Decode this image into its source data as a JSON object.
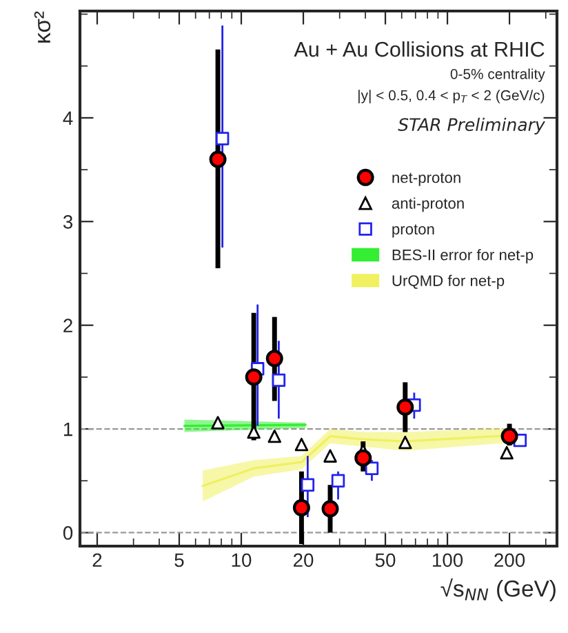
{
  "chart_data": {
    "type": "scatter",
    "xlabel": "√s$_{NN}$ (GeV)",
    "ylabel": "κσ²",
    "annotations": [
      "Au + Au Collisions at RHIC",
      "0-5% centrality",
      "|y| < 0.5, 0.4 < p$_{T}$ < 2 (GeV/c)",
      "STAR Preliminary"
    ],
    "log": "x",
    "xlim": [
      1.65,
      340
    ],
    "xticks": [
      2,
      5,
      10,
      20,
      50,
      100,
      200
    ],
    "ylim": [
      -0.13,
      5.03
    ],
    "yticks": [
      0,
      1,
      2,
      3,
      4
    ],
    "grid": false,
    "legend": "right",
    "ref_lines": [
      {
        "axis": "y",
        "value": 0,
        "color": "#999999",
        "line_style": "dashed"
      },
      {
        "axis": "y",
        "value": 1,
        "color": "#999999",
        "line_style": "dashed"
      }
    ],
    "series": [
      {
        "name": "BES-II error for net-p",
        "type": "line",
        "color": "#33ee33",
        "x": [
          5.3,
          20.5
        ],
        "values": [
          1.03,
          1.04
        ],
        "lower": [
          0.97,
          1.01
        ],
        "upper": [
          1.09,
          1.06
        ]
      },
      {
        "name": "UrQMD for net-p",
        "type": "line",
        "color": "#f0f060",
        "x": [
          6.5,
          11.5,
          19.6,
          27,
          39,
          62.4,
          210
        ],
        "values": [
          0.45,
          0.62,
          0.68,
          0.93,
          0.9,
          0.88,
          0.94
        ],
        "lower": [
          0.3,
          0.54,
          0.61,
          0.86,
          0.83,
          0.79,
          0.87
        ],
        "upper": [
          0.6,
          0.7,
          0.74,
          1.0,
          0.97,
          0.97,
          1.01
        ]
      },
      {
        "name": "proton",
        "marker": "square",
        "color": "#2222ee",
        "x": [
          8.1,
          12,
          15.2,
          21,
          29.5,
          43,
          69,
          225
        ],
        "values": [
          3.8,
          1.58,
          1.47,
          0.46,
          0.5,
          0.62,
          1.23,
          0.89
        ],
        "errors": [
          [
            2.75,
            4.89
          ],
          [
            1.03,
            2.2
          ],
          [
            1.1,
            1.85
          ],
          [
            0.15,
            0.74
          ],
          [
            0.32,
            0.59
          ],
          [
            0.5,
            0.7
          ],
          [
            1.1,
            1.35
          ],
          [
            0.83,
            0.95
          ]
        ]
      },
      {
        "name": "anti-proton",
        "marker": "triangle",
        "color": "#000000",
        "x": [
          7.7,
          11.5,
          14.5,
          19.6,
          27,
          39,
          62.4,
          194
        ],
        "values": [
          1.06,
          0.97,
          0.93,
          0.85,
          0.74,
          0.79,
          0.87,
          0.77
        ]
      },
      {
        "name": "net-proton",
        "marker": "circle",
        "color": "#ff0000",
        "x": [
          7.7,
          11.5,
          14.5,
          19.6,
          27,
          39,
          62.4,
          200
        ],
        "values": [
          3.6,
          1.5,
          1.68,
          0.24,
          0.23,
          0.72,
          1.21,
          0.93
        ],
        "errors": [
          [
            2.55,
            4.66
          ],
          [
            0.89,
            2.12
          ],
          [
            1.27,
            2.08
          ],
          [
            -0.11,
            0.59
          ],
          [
            0.0,
            0.46
          ],
          [
            0.59,
            0.88
          ],
          [
            0.97,
            1.45
          ],
          [
            0.84,
            1.05
          ]
        ]
      }
    ]
  }
}
